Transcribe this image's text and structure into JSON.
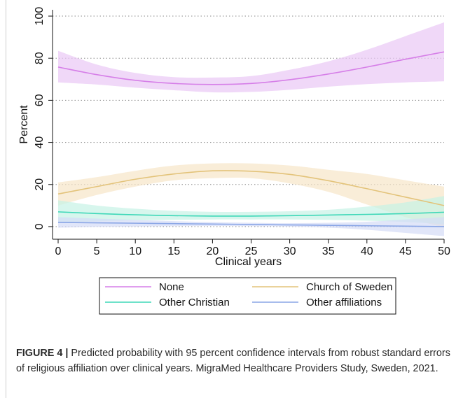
{
  "figure": {
    "label": "FIGURE 4 |",
    "text": " Predicted probability with 95 percent confidence intervals from robust standard errors of religious affiliation over clinical years. MigraMed Healthcare Providers Study, Sweden, 2021."
  },
  "chart_data": {
    "type": "line",
    "title": "",
    "xlabel": "Clinical years",
    "ylabel": "Percent",
    "xlim": [
      0,
      50
    ],
    "ylim": [
      -6,
      103
    ],
    "xticks": [
      0,
      5,
      10,
      15,
      20,
      25,
      30,
      35,
      40,
      45,
      50
    ],
    "yticks": [
      0,
      20,
      40,
      60,
      80,
      100
    ],
    "grid": "horizontal dotted",
    "legend_position": "bottom",
    "x": [
      0,
      5,
      10,
      15,
      20,
      25,
      30,
      35,
      40,
      45,
      50
    ],
    "series": [
      {
        "name": "None",
        "color": "#d67fe8",
        "band_color": "#e9c8f5",
        "values": [
          75.8,
          72.2,
          69.5,
          68.0,
          67.5,
          68.0,
          69.8,
          72.5,
          75.8,
          79.5,
          83.0
        ],
        "lower": [
          68.5,
          67.5,
          66.0,
          64.8,
          63.8,
          64.0,
          65.0,
          66.5,
          67.7,
          68.5,
          69.0
        ],
        "upper": [
          83.5,
          77.0,
          73.0,
          71.0,
          70.8,
          71.5,
          74.5,
          78.5,
          84.0,
          90.5,
          97.0
        ]
      },
      {
        "name": "Church of Sweden",
        "color": "#e3c37a",
        "band_color": "#f7e6c8",
        "values": [
          15.5,
          19.0,
          22.5,
          25.0,
          26.5,
          26.3,
          24.8,
          21.8,
          18.0,
          14.0,
          10.0
        ],
        "lower": [
          10.0,
          15.0,
          19.0,
          22.0,
          23.0,
          23.0,
          20.5,
          16.5,
          10.5,
          4.5,
          -0.5
        ],
        "upper": [
          21.0,
          23.5,
          26.5,
          29.0,
          30.0,
          30.0,
          29.0,
          27.0,
          25.0,
          22.0,
          19.0
        ]
      },
      {
        "name": "Other Christian",
        "color": "#3fd8b8",
        "band_color": "#c6f2e6",
        "values": [
          7.0,
          6.2,
          5.6,
          5.2,
          5.0,
          5.0,
          5.2,
          5.5,
          5.8,
          6.2,
          6.8
        ],
        "lower": [
          2.0,
          2.5,
          3.0,
          3.2,
          3.4,
          3.4,
          3.4,
          3.2,
          2.8,
          2.2,
          1.2
        ],
        "upper": [
          12.5,
          10.0,
          8.5,
          7.5,
          7.0,
          7.0,
          7.3,
          8.0,
          9.5,
          11.5,
          14.5
        ]
      },
      {
        "name": "Other affiliations",
        "color": "#8aa6e6",
        "band_color": "#d4dcf6",
        "values": [
          2.0,
          1.8,
          1.6,
          1.4,
          1.2,
          1.0,
          0.8,
          0.6,
          0.4,
          0.2,
          0.0
        ],
        "lower": [
          -0.5,
          -0.2,
          0.0,
          0.2,
          0.3,
          0.2,
          0.0,
          -0.5,
          -1.5,
          -3.0,
          -4.5
        ],
        "upper": [
          4.5,
          3.8,
          3.2,
          2.6,
          2.1,
          1.8,
          1.6,
          1.8,
          2.3,
          3.4,
          4.5
        ]
      }
    ]
  }
}
